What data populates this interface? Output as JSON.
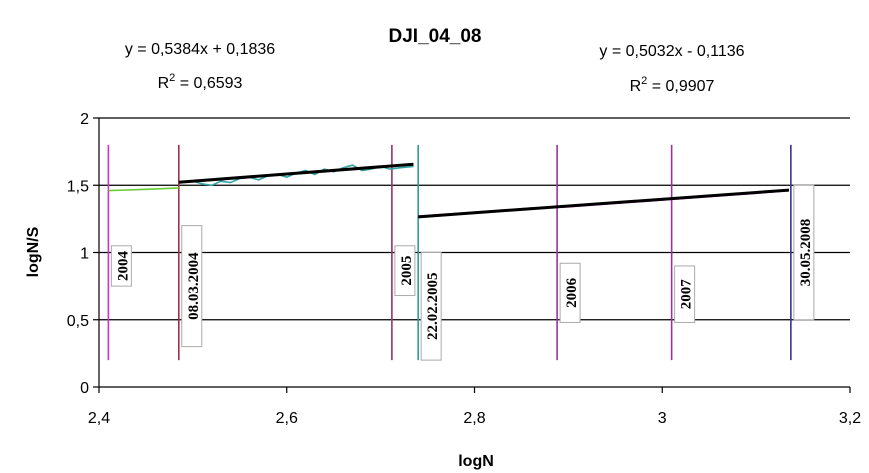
{
  "chart_data": {
    "type": "line",
    "title": "DJI_04_08",
    "xlabel": "logN",
    "ylabel": "logN/S",
    "xlim": [
      2.4,
      3.2
    ],
    "ylim": [
      0,
      2
    ],
    "x_ticks": [
      2.4,
      2.6,
      2.8,
      3.0,
      3.2
    ],
    "x_tick_labels": [
      "2,4",
      "2,6",
      "2,8",
      "3",
      "3,2"
    ],
    "y_ticks": [
      0,
      0.5,
      1,
      1.5,
      2
    ],
    "y_tick_labels": [
      "0",
      "0,5",
      "1",
      "1,5",
      "2"
    ],
    "grid": "horizontal",
    "legend": "none",
    "equations": [
      {
        "equation": "y = 0,5384x + 0,1836",
        "r2_prefix": "R",
        "r2_sup": "2",
        "r2_value": " = 0,6593"
      },
      {
        "equation": "y = 0,5032x - 0,1136",
        "r2_prefix": "R",
        "r2_sup": "2",
        "r2_value": " = 0,9907"
      }
    ],
    "series": [
      {
        "color": "#66cc33",
        "x": [
          2.41,
          2.43,
          2.45,
          2.47,
          2.485
        ],
        "y": [
          1.46,
          1.465,
          1.47,
          1.475,
          1.48
        ]
      },
      {
        "color": "#33a3a3",
        "x": [
          2.485,
          2.5,
          2.51,
          2.52,
          2.53,
          2.54,
          2.55,
          2.56,
          2.57,
          2.58,
          2.59,
          2.6,
          2.61,
          2.62,
          2.63,
          2.64,
          2.65,
          2.66,
          2.67,
          2.68,
          2.69,
          2.7,
          2.71,
          2.72,
          2.735
        ],
        "y": [
          1.52,
          1.53,
          1.51,
          1.5,
          1.53,
          1.52,
          1.55,
          1.56,
          1.54,
          1.57,
          1.58,
          1.56,
          1.59,
          1.61,
          1.58,
          1.62,
          1.6,
          1.63,
          1.65,
          1.61,
          1.62,
          1.64,
          1.62,
          1.63,
          1.64
        ]
      },
      {
        "color": "#cc33cc",
        "x": [
          2.74,
          2.78,
          2.82,
          2.86,
          2.9,
          2.94,
          2.98,
          3.02,
          3.06,
          3.1,
          3.135
        ],
        "y": [
          1.27,
          1.29,
          1.31,
          1.33,
          1.34,
          1.36,
          1.38,
          1.4,
          1.42,
          1.44,
          1.46
        ]
      }
    ],
    "trendlines": [
      {
        "x": [
          2.485,
          2.735
        ],
        "y": [
          1.522,
          1.656
        ]
      },
      {
        "x": [
          2.74,
          3.135
        ],
        "y": [
          1.265,
          1.464
        ]
      }
    ],
    "markers": [
      {
        "x": 2.41,
        "label": "2004",
        "color": "#cc33cc",
        "label_y": [
          1.05,
          0.75
        ]
      },
      {
        "x": 2.485,
        "label": "08.03.2004",
        "color": "#993344",
        "label_y": [
          1.2,
          0.3
        ]
      },
      {
        "x": 2.712,
        "label": "2005",
        "color": "#993366",
        "label_y": [
          1.05,
          0.68
        ]
      },
      {
        "x": 2.74,
        "label": "22.02.2005",
        "color": "#339999",
        "label_y": [
          1.0,
          0.2
        ]
      },
      {
        "x": 2.888,
        "label": "2006",
        "color": "#993399",
        "label_y": [
          0.92,
          0.48
        ]
      },
      {
        "x": 3.01,
        "label": "2007",
        "color": "#993399",
        "label_y": [
          0.9,
          0.48
        ]
      },
      {
        "x": 3.137,
        "label": "30.05.2008",
        "color": "#333399",
        "label_y": [
          1.5,
          0.5
        ]
      }
    ]
  }
}
